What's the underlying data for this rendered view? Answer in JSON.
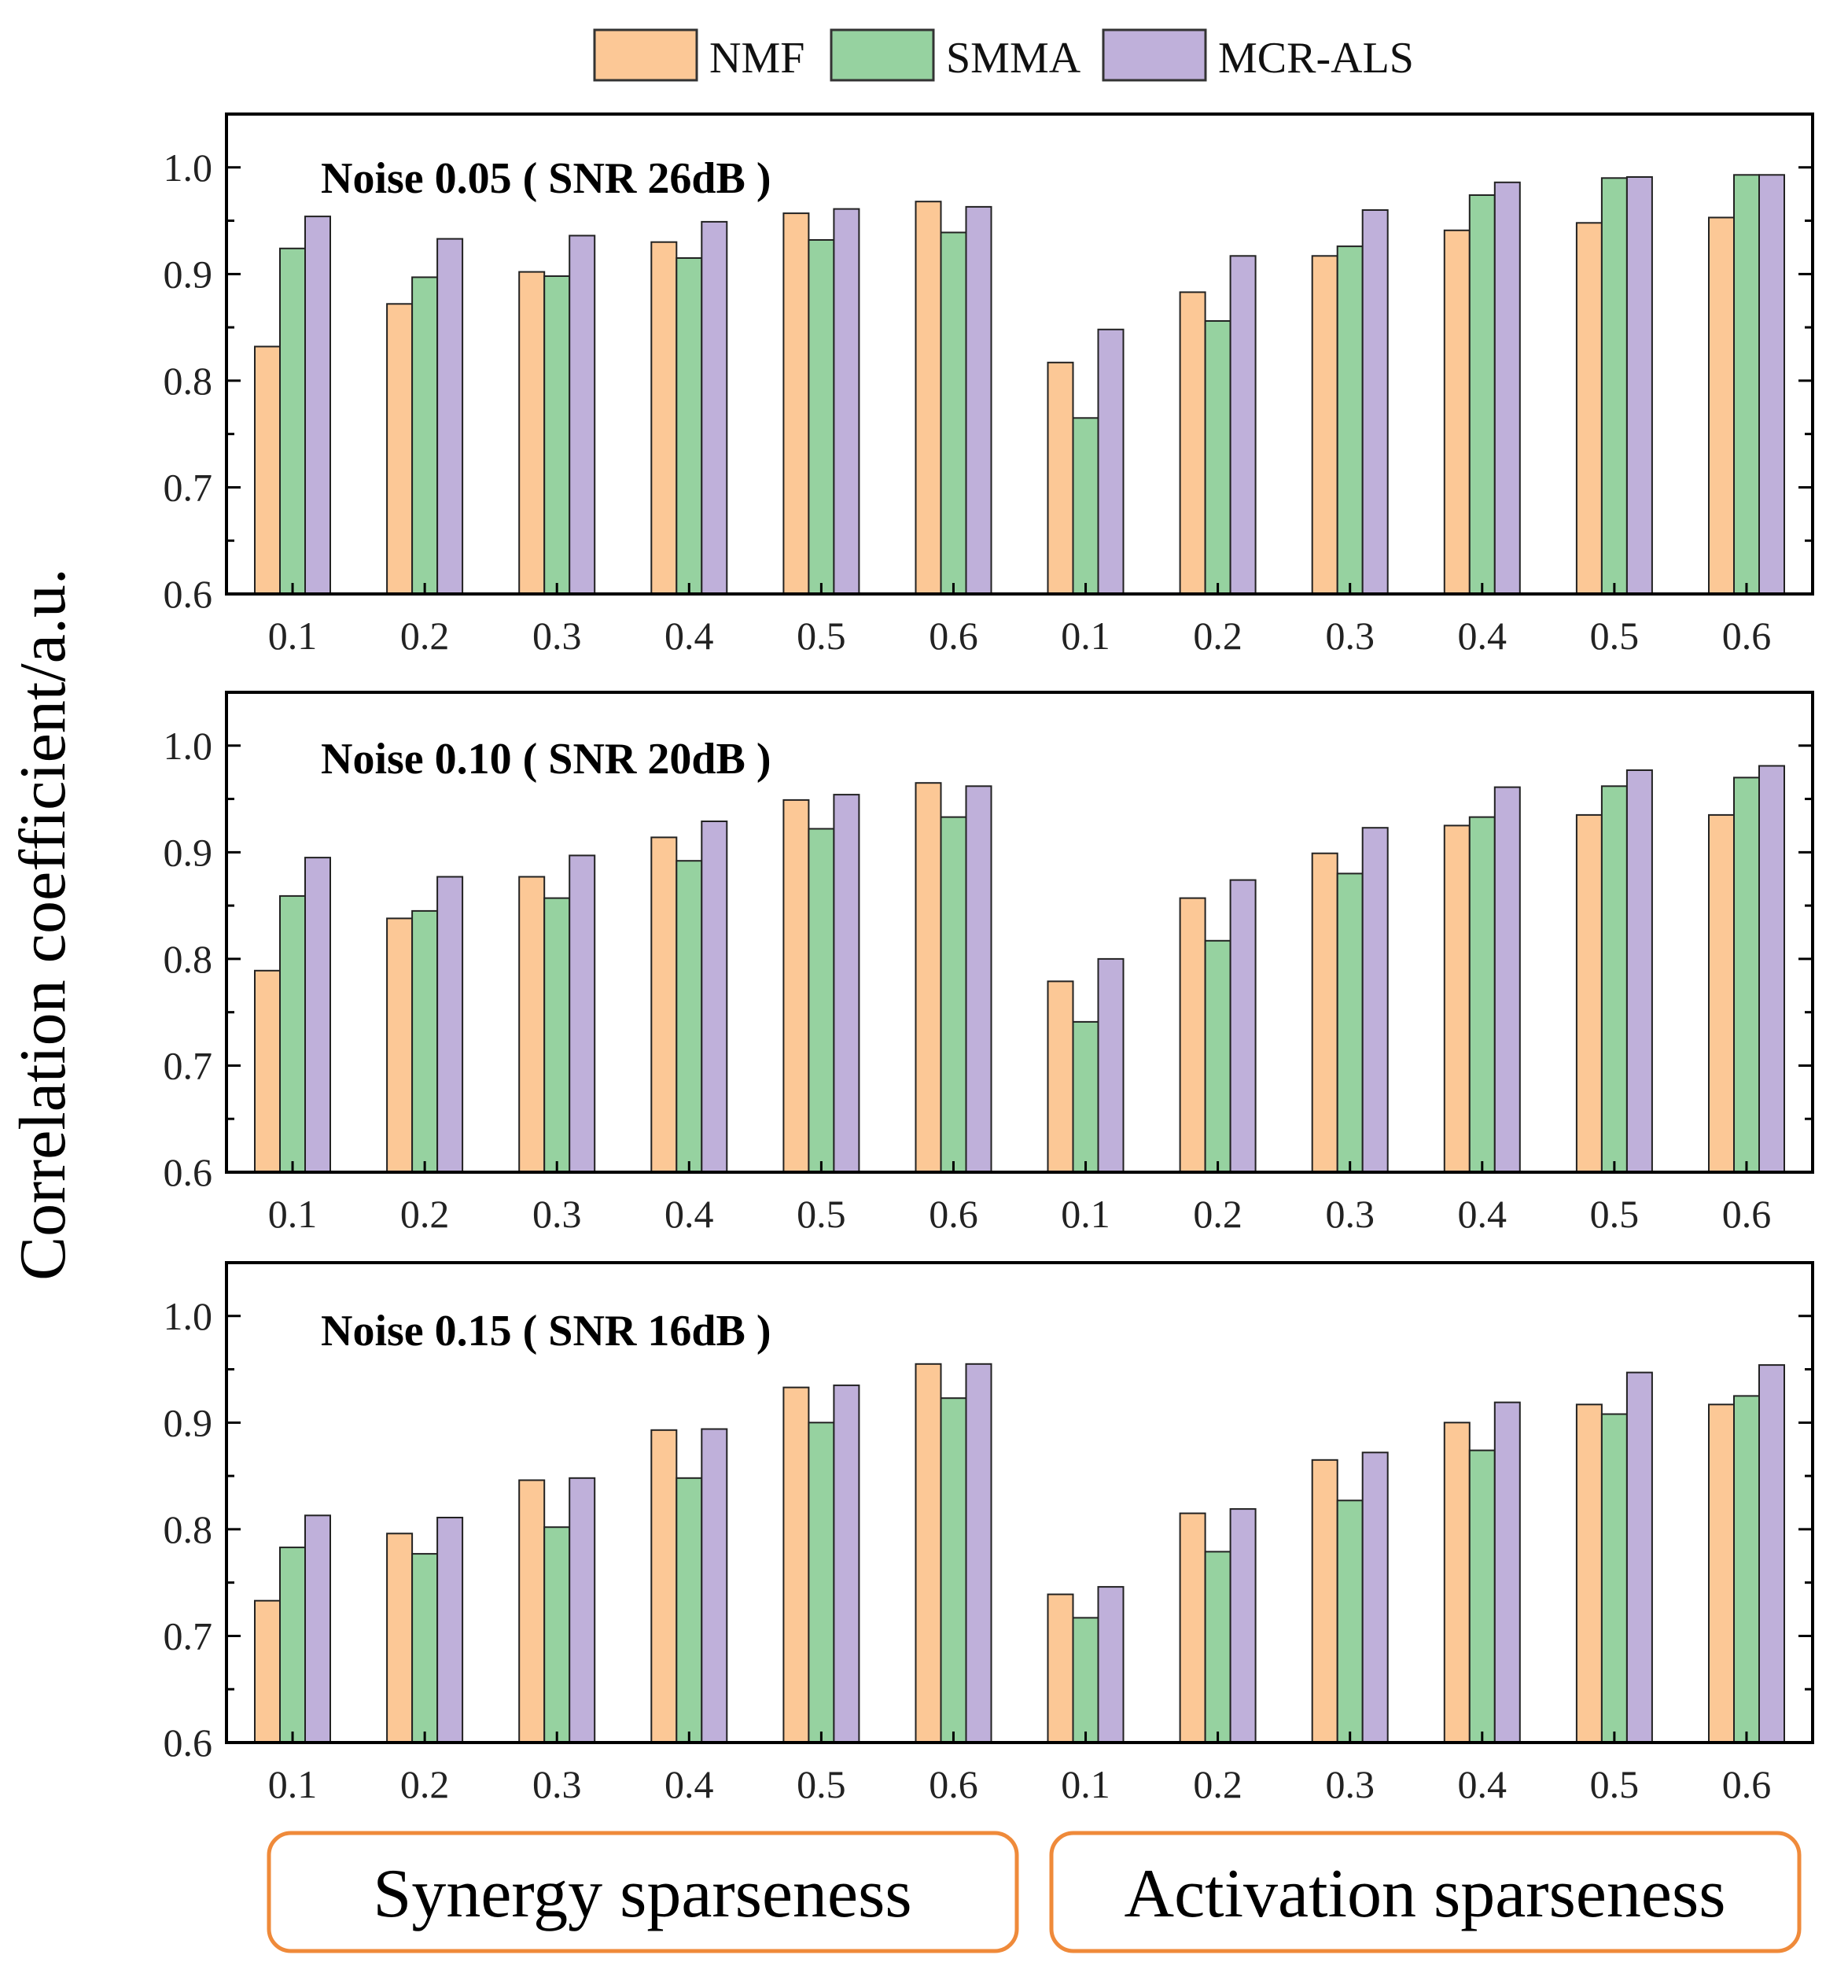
{
  "colors": {
    "NMF": "#fcc896",
    "SMMA": "#96d2a0",
    "MCR-ALS": "#bfb0da",
    "bracket": "#ef8a3a",
    "axis": "#000000"
  },
  "ylabel": "Correlation coefficient/a.u.",
  "legend": [
    "NMF",
    "SMMA",
    "MCR-ALS"
  ],
  "groups": [
    "Synergy sparseness",
    "Activation sparseness"
  ],
  "yticks": [
    "0.6",
    "0.7",
    "0.8",
    "0.9",
    "1.0"
  ],
  "chart_data": [
    {
      "type": "bar",
      "title": "Noise 0.05 ( SNR 26dB )",
      "categories": [
        "0.1",
        "0.2",
        "0.3",
        "0.4",
        "0.5",
        "0.6",
        "0.1",
        "0.2",
        "0.3",
        "0.4",
        "0.5",
        "0.6"
      ],
      "ylim": [
        0.6,
        1.05
      ],
      "series": [
        {
          "name": "NMF",
          "values": [
            0.832,
            0.872,
            0.902,
            0.93,
            0.957,
            0.968,
            0.817,
            0.883,
            0.917,
            0.941,
            0.948,
            0.953
          ]
        },
        {
          "name": "SMMA",
          "values": [
            0.924,
            0.897,
            0.898,
            0.915,
            0.932,
            0.939,
            0.765,
            0.856,
            0.926,
            0.974,
            0.99,
            0.993
          ]
        },
        {
          "name": "MCR-ALS",
          "values": [
            0.954,
            0.933,
            0.936,
            0.949,
            0.961,
            0.963,
            0.848,
            0.917,
            0.96,
            0.986,
            0.991,
            0.993
          ]
        }
      ]
    },
    {
      "type": "bar",
      "title": "Noise 0.10 ( SNR 20dB )",
      "categories": [
        "0.1",
        "0.2",
        "0.3",
        "0.4",
        "0.5",
        "0.6",
        "0.1",
        "0.2",
        "0.3",
        "0.4",
        "0.5",
        "0.6"
      ],
      "ylim": [
        0.6,
        1.05
      ],
      "series": [
        {
          "name": "NMF",
          "values": [
            0.789,
            0.838,
            0.877,
            0.914,
            0.949,
            0.965,
            0.779,
            0.857,
            0.899,
            0.925,
            0.935,
            0.935
          ]
        },
        {
          "name": "SMMA",
          "values": [
            0.859,
            0.845,
            0.857,
            0.892,
            0.922,
            0.933,
            0.741,
            0.817,
            0.88,
            0.933,
            0.962,
            0.97
          ]
        },
        {
          "name": "MCR-ALS",
          "values": [
            0.895,
            0.877,
            0.897,
            0.929,
            0.954,
            0.962,
            0.8,
            0.874,
            0.923,
            0.961,
            0.977,
            0.981
          ]
        }
      ]
    },
    {
      "type": "bar",
      "title": "Noise 0.15 ( SNR 16dB )",
      "categories": [
        "0.1",
        "0.2",
        "0.3",
        "0.4",
        "0.5",
        "0.6",
        "0.1",
        "0.2",
        "0.3",
        "0.4",
        "0.5",
        "0.6"
      ],
      "ylim": [
        0.6,
        1.05
      ],
      "series": [
        {
          "name": "NMF",
          "values": [
            0.733,
            0.796,
            0.846,
            0.893,
            0.933,
            0.955,
            0.739,
            0.815,
            0.865,
            0.9,
            0.917,
            0.917
          ]
        },
        {
          "name": "SMMA",
          "values": [
            0.783,
            0.777,
            0.802,
            0.848,
            0.9,
            0.923,
            0.717,
            0.779,
            0.827,
            0.874,
            0.908,
            0.925
          ]
        },
        {
          "name": "MCR-ALS",
          "values": [
            0.813,
            0.811,
            0.848,
            0.894,
            0.935,
            0.955,
            0.746,
            0.819,
            0.872,
            0.919,
            0.947,
            0.954
          ]
        }
      ]
    }
  ]
}
